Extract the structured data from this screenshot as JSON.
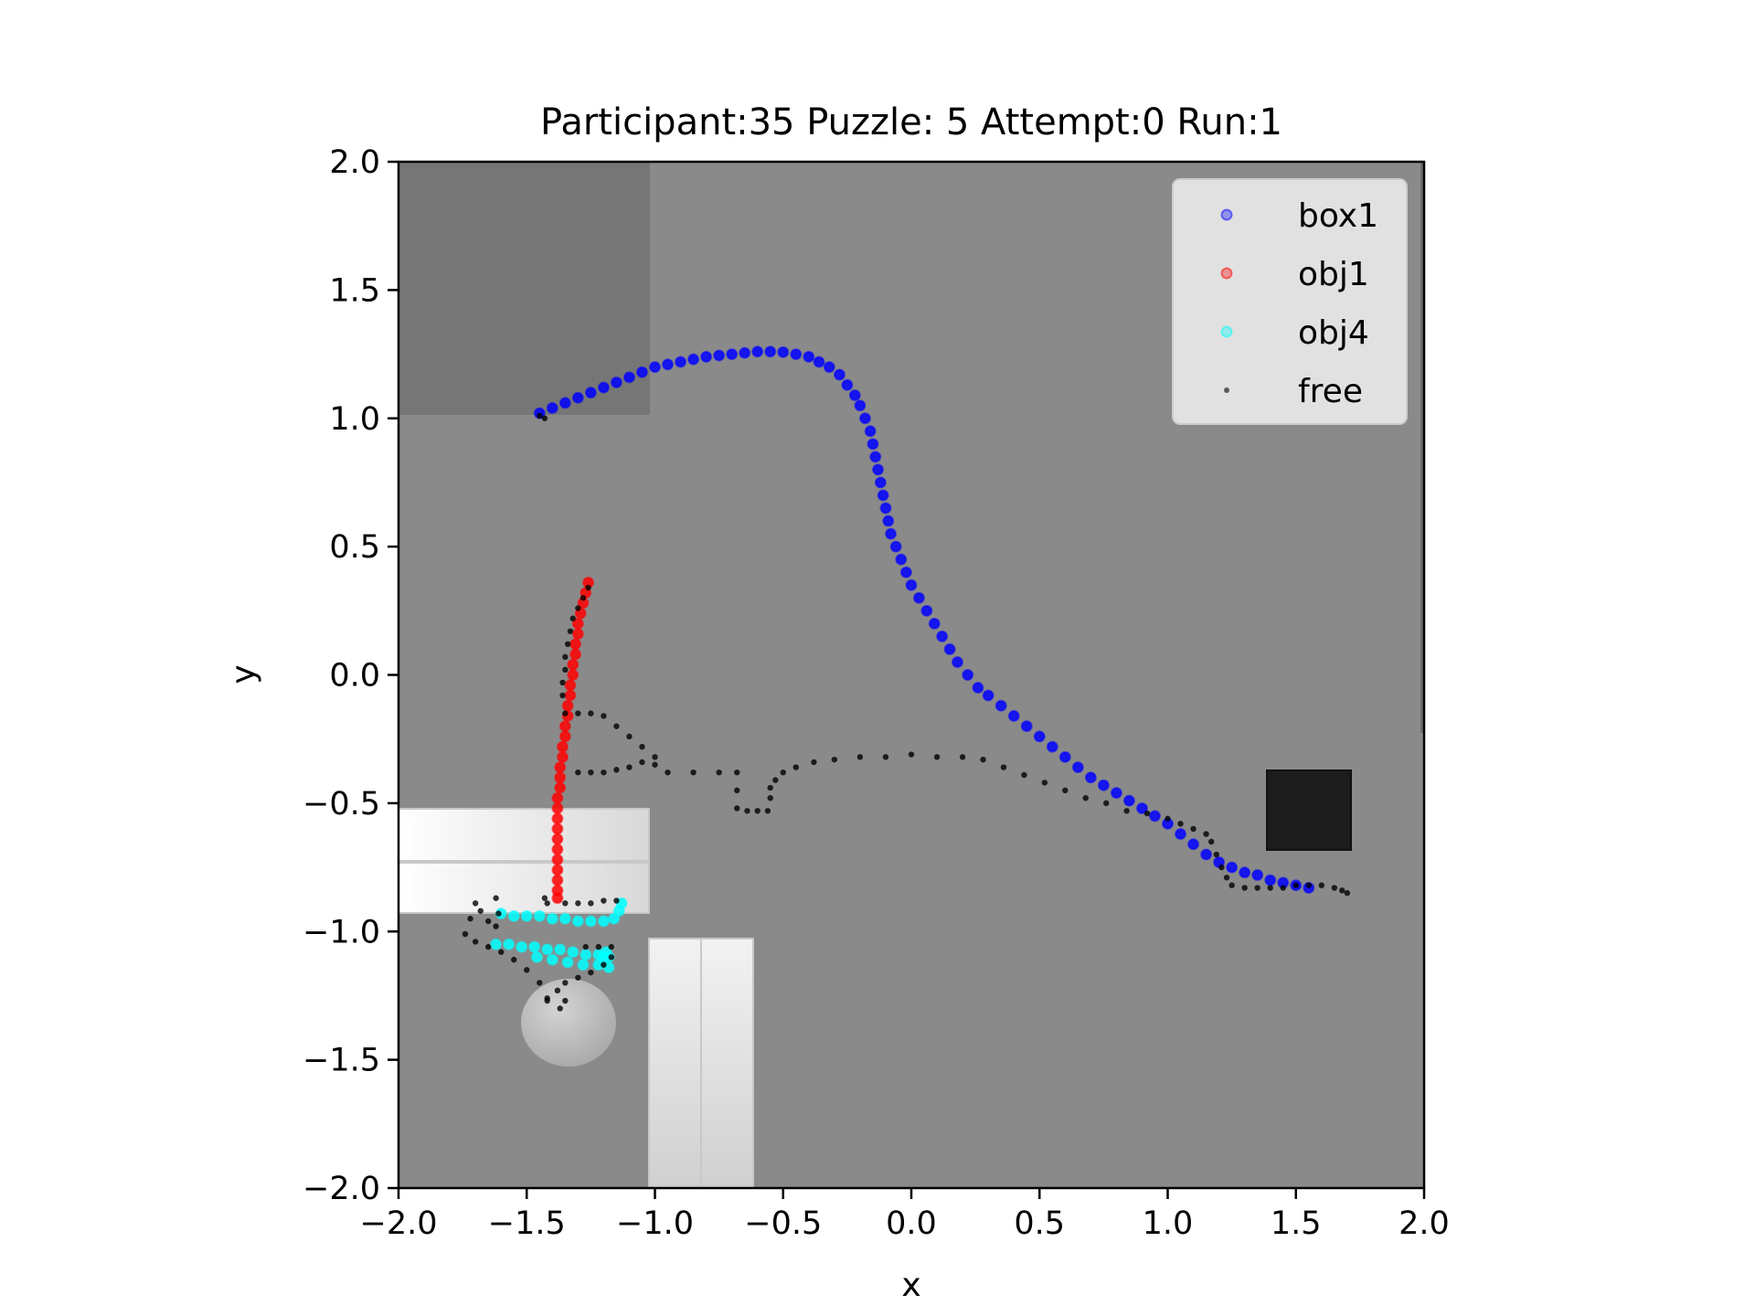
{
  "chart_data": {
    "type": "scatter",
    "title": "Participant:35 Puzzle: 5 Attempt:0 Run:1",
    "xlabel": "x",
    "ylabel": "y",
    "xlim": [
      -2.0,
      2.0
    ],
    "ylim": [
      -2.0,
      2.0
    ],
    "xticks": [
      -2.0,
      -1.5,
      -1.0,
      -0.5,
      0.0,
      0.5,
      1.0,
      1.5,
      2.0
    ],
    "yticks": [
      -2.0,
      -1.5,
      -1.0,
      -0.5,
      0.0,
      0.5,
      1.0,
      1.5,
      2.0
    ],
    "xtick_labels": [
      "−2.0",
      "−1.5",
      "−1.0",
      "−0.5",
      "0.0",
      "0.5",
      "1.0",
      "1.5",
      "2.0"
    ],
    "ytick_labels": [
      "−2.0",
      "−1.5",
      "−1.0",
      "−0.5",
      "0.0",
      "0.5",
      "1.0",
      "1.5",
      "2.0"
    ],
    "grid": false,
    "legend_position": "top-right",
    "series": [
      {
        "name": "box1",
        "color": "#0000ff",
        "marker": "circle-large",
        "points": [
          [
            -1.45,
            1.02
          ],
          [
            -1.4,
            1.04
          ],
          [
            -1.35,
            1.06
          ],
          [
            -1.3,
            1.08
          ],
          [
            -1.25,
            1.1
          ],
          [
            -1.2,
            1.12
          ],
          [
            -1.15,
            1.14
          ],
          [
            -1.1,
            1.16
          ],
          [
            -1.05,
            1.18
          ],
          [
            -1.0,
            1.2
          ],
          [
            -0.95,
            1.21
          ],
          [
            -0.9,
            1.22
          ],
          [
            -0.85,
            1.23
          ],
          [
            -0.8,
            1.24
          ],
          [
            -0.75,
            1.245
          ],
          [
            -0.7,
            1.25
          ],
          [
            -0.65,
            1.255
          ],
          [
            -0.6,
            1.26
          ],
          [
            -0.55,
            1.26
          ],
          [
            -0.5,
            1.258
          ],
          [
            -0.45,
            1.25
          ],
          [
            -0.4,
            1.24
          ],
          [
            -0.36,
            1.22
          ],
          [
            -0.32,
            1.2
          ],
          [
            -0.28,
            1.17
          ],
          [
            -0.25,
            1.13
          ],
          [
            -0.22,
            1.09
          ],
          [
            -0.2,
            1.05
          ],
          [
            -0.18,
            1.0
          ],
          [
            -0.16,
            0.95
          ],
          [
            -0.15,
            0.9
          ],
          [
            -0.14,
            0.85
          ],
          [
            -0.13,
            0.8
          ],
          [
            -0.12,
            0.75
          ],
          [
            -0.11,
            0.7
          ],
          [
            -0.1,
            0.65
          ],
          [
            -0.09,
            0.6
          ],
          [
            -0.08,
            0.55
          ],
          [
            -0.06,
            0.5
          ],
          [
            -0.04,
            0.45
          ],
          [
            -0.02,
            0.4
          ],
          [
            0.0,
            0.35
          ],
          [
            0.03,
            0.3
          ],
          [
            0.06,
            0.25
          ],
          [
            0.09,
            0.2
          ],
          [
            0.12,
            0.15
          ],
          [
            0.15,
            0.1
          ],
          [
            0.18,
            0.05
          ],
          [
            0.22,
            0.0
          ],
          [
            0.26,
            -0.05
          ],
          [
            0.3,
            -0.08
          ],
          [
            0.35,
            -0.12
          ],
          [
            0.4,
            -0.16
          ],
          [
            0.45,
            -0.2
          ],
          [
            0.5,
            -0.24
          ],
          [
            0.55,
            -0.28
          ],
          [
            0.6,
            -0.32
          ],
          [
            0.65,
            -0.36
          ],
          [
            0.7,
            -0.4
          ],
          [
            0.75,
            -0.43
          ],
          [
            0.8,
            -0.46
          ],
          [
            0.85,
            -0.49
          ],
          [
            0.9,
            -0.52
          ],
          [
            0.95,
            -0.55
          ],
          [
            1.0,
            -0.58
          ],
          [
            1.05,
            -0.62
          ],
          [
            1.1,
            -0.66
          ],
          [
            1.15,
            -0.7
          ],
          [
            1.2,
            -0.73
          ],
          [
            1.25,
            -0.75
          ],
          [
            1.3,
            -0.77
          ],
          [
            1.35,
            -0.78
          ],
          [
            1.4,
            -0.8
          ],
          [
            1.45,
            -0.81
          ],
          [
            1.5,
            -0.82
          ],
          [
            1.55,
            -0.83
          ]
        ]
      },
      {
        "name": "obj1",
        "color": "#ff0000",
        "marker": "circle-large",
        "points": [
          [
            -1.26,
            0.36
          ],
          [
            -1.27,
            0.32
          ],
          [
            -1.28,
            0.28
          ],
          [
            -1.29,
            0.24
          ],
          [
            -1.3,
            0.2
          ],
          [
            -1.3,
            0.16
          ],
          [
            -1.31,
            0.12
          ],
          [
            -1.31,
            0.08
          ],
          [
            -1.32,
            0.04
          ],
          [
            -1.32,
            0.0
          ],
          [
            -1.33,
            -0.04
          ],
          [
            -1.33,
            -0.08
          ],
          [
            -1.34,
            -0.12
          ],
          [
            -1.34,
            -0.16
          ],
          [
            -1.35,
            -0.2
          ],
          [
            -1.35,
            -0.24
          ],
          [
            -1.36,
            -0.28
          ],
          [
            -1.36,
            -0.32
          ],
          [
            -1.37,
            -0.36
          ],
          [
            -1.37,
            -0.4
          ],
          [
            -1.37,
            -0.44
          ],
          [
            -1.38,
            -0.48
          ],
          [
            -1.38,
            -0.52
          ],
          [
            -1.38,
            -0.56
          ],
          [
            -1.38,
            -0.6
          ],
          [
            -1.38,
            -0.64
          ],
          [
            -1.38,
            -0.68
          ],
          [
            -1.38,
            -0.72
          ],
          [
            -1.38,
            -0.76
          ],
          [
            -1.38,
            -0.8
          ],
          [
            -1.38,
            -0.84
          ],
          [
            -1.38,
            -0.87
          ]
        ]
      },
      {
        "name": "obj4",
        "color": "#00ffff",
        "marker": "circle-large",
        "points": [
          [
            -1.6,
            -0.93
          ],
          [
            -1.55,
            -0.94
          ],
          [
            -1.5,
            -0.94
          ],
          [
            -1.45,
            -0.94
          ],
          [
            -1.4,
            -0.95
          ],
          [
            -1.35,
            -0.95
          ],
          [
            -1.3,
            -0.96
          ],
          [
            -1.25,
            -0.96
          ],
          [
            -1.2,
            -0.96
          ],
          [
            -1.16,
            -0.95
          ],
          [
            -1.14,
            -0.92
          ],
          [
            -1.13,
            -0.89
          ],
          [
            -1.62,
            -1.05
          ],
          [
            -1.57,
            -1.05
          ],
          [
            -1.52,
            -1.06
          ],
          [
            -1.47,
            -1.06
          ],
          [
            -1.42,
            -1.07
          ],
          [
            -1.37,
            -1.07
          ],
          [
            -1.32,
            -1.08
          ],
          [
            -1.27,
            -1.09
          ],
          [
            -1.22,
            -1.09
          ],
          [
            -1.18,
            -1.1
          ],
          [
            -1.46,
            -1.1
          ],
          [
            -1.4,
            -1.11
          ],
          [
            -1.34,
            -1.12
          ],
          [
            -1.28,
            -1.13
          ],
          [
            -1.22,
            -1.13
          ],
          [
            -1.18,
            -1.14
          ],
          [
            -1.19,
            -1.08
          ],
          [
            -1.2,
            -1.1
          ]
        ]
      },
      {
        "name": "free",
        "color": "#000000",
        "marker": "dot-small",
        "points": [
          [
            -1.45,
            1.01
          ],
          [
            -1.43,
            1.0
          ],
          [
            -1.26,
            0.34
          ],
          [
            -1.28,
            0.3
          ],
          [
            -1.3,
            0.26
          ],
          [
            -1.32,
            0.22
          ],
          [
            -1.33,
            0.17
          ],
          [
            -1.34,
            0.12
          ],
          [
            -1.35,
            0.07
          ],
          [
            -1.35,
            0.02
          ],
          [
            -1.36,
            -0.03
          ],
          [
            -1.36,
            -0.08
          ],
          [
            -1.35,
            -0.15
          ],
          [
            -1.3,
            -0.15
          ],
          [
            -1.25,
            -0.15
          ],
          [
            -1.2,
            -0.16
          ],
          [
            -1.15,
            -0.2
          ],
          [
            -1.1,
            -0.24
          ],
          [
            -1.05,
            -0.28
          ],
          [
            -1.0,
            -0.32
          ],
          [
            -1.0,
            -0.35
          ],
          [
            -1.05,
            -0.34
          ],
          [
            -1.1,
            -0.36
          ],
          [
            -1.15,
            -0.37
          ],
          [
            -1.2,
            -0.38
          ],
          [
            -1.25,
            -0.38
          ],
          [
            -1.3,
            -0.38
          ],
          [
            -0.95,
            -0.38
          ],
          [
            -0.85,
            -0.38
          ],
          [
            -0.75,
            -0.38
          ],
          [
            -0.68,
            -0.38
          ],
          [
            -0.68,
            -0.45
          ],
          [
            -0.68,
            -0.52
          ],
          [
            -0.64,
            -0.53
          ],
          [
            -0.6,
            -0.53
          ],
          [
            -0.56,
            -0.53
          ],
          [
            -0.55,
            -0.48
          ],
          [
            -0.55,
            -0.44
          ],
          [
            -0.53,
            -0.41
          ],
          [
            -0.5,
            -0.38
          ],
          [
            -0.45,
            -0.36
          ],
          [
            -0.38,
            -0.34
          ],
          [
            -0.3,
            -0.33
          ],
          [
            -0.2,
            -0.32
          ],
          [
            -0.1,
            -0.32
          ],
          [
            0.0,
            -0.31
          ],
          [
            0.1,
            -0.32
          ],
          [
            0.2,
            -0.32
          ],
          [
            0.28,
            -0.33
          ],
          [
            0.36,
            -0.36
          ],
          [
            0.44,
            -0.39
          ],
          [
            0.52,
            -0.42
          ],
          [
            0.6,
            -0.45
          ],
          [
            0.68,
            -0.48
          ],
          [
            0.76,
            -0.5
          ],
          [
            0.84,
            -0.53
          ],
          [
            0.92,
            -0.54
          ],
          [
            1.0,
            -0.56
          ],
          [
            1.05,
            -0.58
          ],
          [
            1.1,
            -0.6
          ],
          [
            1.15,
            -0.62
          ],
          [
            1.17,
            -0.65
          ],
          [
            1.19,
            -0.7
          ],
          [
            1.21,
            -0.75
          ],
          [
            1.23,
            -0.79
          ],
          [
            1.25,
            -0.82
          ],
          [
            1.3,
            -0.83
          ],
          [
            1.35,
            -0.83
          ],
          [
            1.4,
            -0.83
          ],
          [
            1.45,
            -0.83
          ],
          [
            1.5,
            -0.82
          ],
          [
            1.55,
            -0.82
          ],
          [
            1.6,
            -0.82
          ],
          [
            1.65,
            -0.83
          ],
          [
            1.68,
            -0.84
          ],
          [
            1.7,
            -0.85
          ],
          [
            -1.43,
            -0.87
          ],
          [
            -1.42,
            -0.89
          ],
          [
            -1.35,
            -0.89
          ],
          [
            -1.3,
            -0.89
          ],
          [
            -1.25,
            -0.89
          ],
          [
            -1.2,
            -0.88
          ],
          [
            -1.15,
            -0.88
          ],
          [
            -1.62,
            -0.87
          ],
          [
            -1.61,
            -0.93
          ],
          [
            -1.62,
            -0.98
          ],
          [
            -1.65,
            -0.96
          ],
          [
            -1.68,
            -0.92
          ],
          [
            -1.7,
            -0.89
          ],
          [
            -1.72,
            -0.95
          ],
          [
            -1.74,
            -1.01
          ],
          [
            -1.7,
            -1.04
          ],
          [
            -1.65,
            -1.06
          ],
          [
            -1.6,
            -1.08
          ],
          [
            -1.55,
            -1.11
          ],
          [
            -1.5,
            -1.15
          ],
          [
            -1.45,
            -1.2
          ],
          [
            -1.42,
            -1.26
          ],
          [
            -1.38,
            -1.23
          ],
          [
            -1.35,
            -1.2
          ],
          [
            -1.3,
            -1.18
          ],
          [
            -1.25,
            -1.16
          ],
          [
            -1.2,
            -1.13
          ],
          [
            -1.17,
            -1.1
          ],
          [
            -1.17,
            -1.06
          ],
          [
            -1.22,
            -1.06
          ],
          [
            -1.27,
            -1.06
          ],
          [
            -1.35,
            -1.27
          ],
          [
            -1.42,
            -1.27
          ],
          [
            -1.37,
            -1.3
          ]
        ]
      }
    ]
  },
  "background": {
    "plot_fill": "#8a8a8a",
    "upper_left_panel_fill": "#767676",
    "obstacle_fill": "#e6e6e6",
    "ball_fill": "#bdbdbd",
    "dark_box_fill": "#1c1c1c"
  }
}
